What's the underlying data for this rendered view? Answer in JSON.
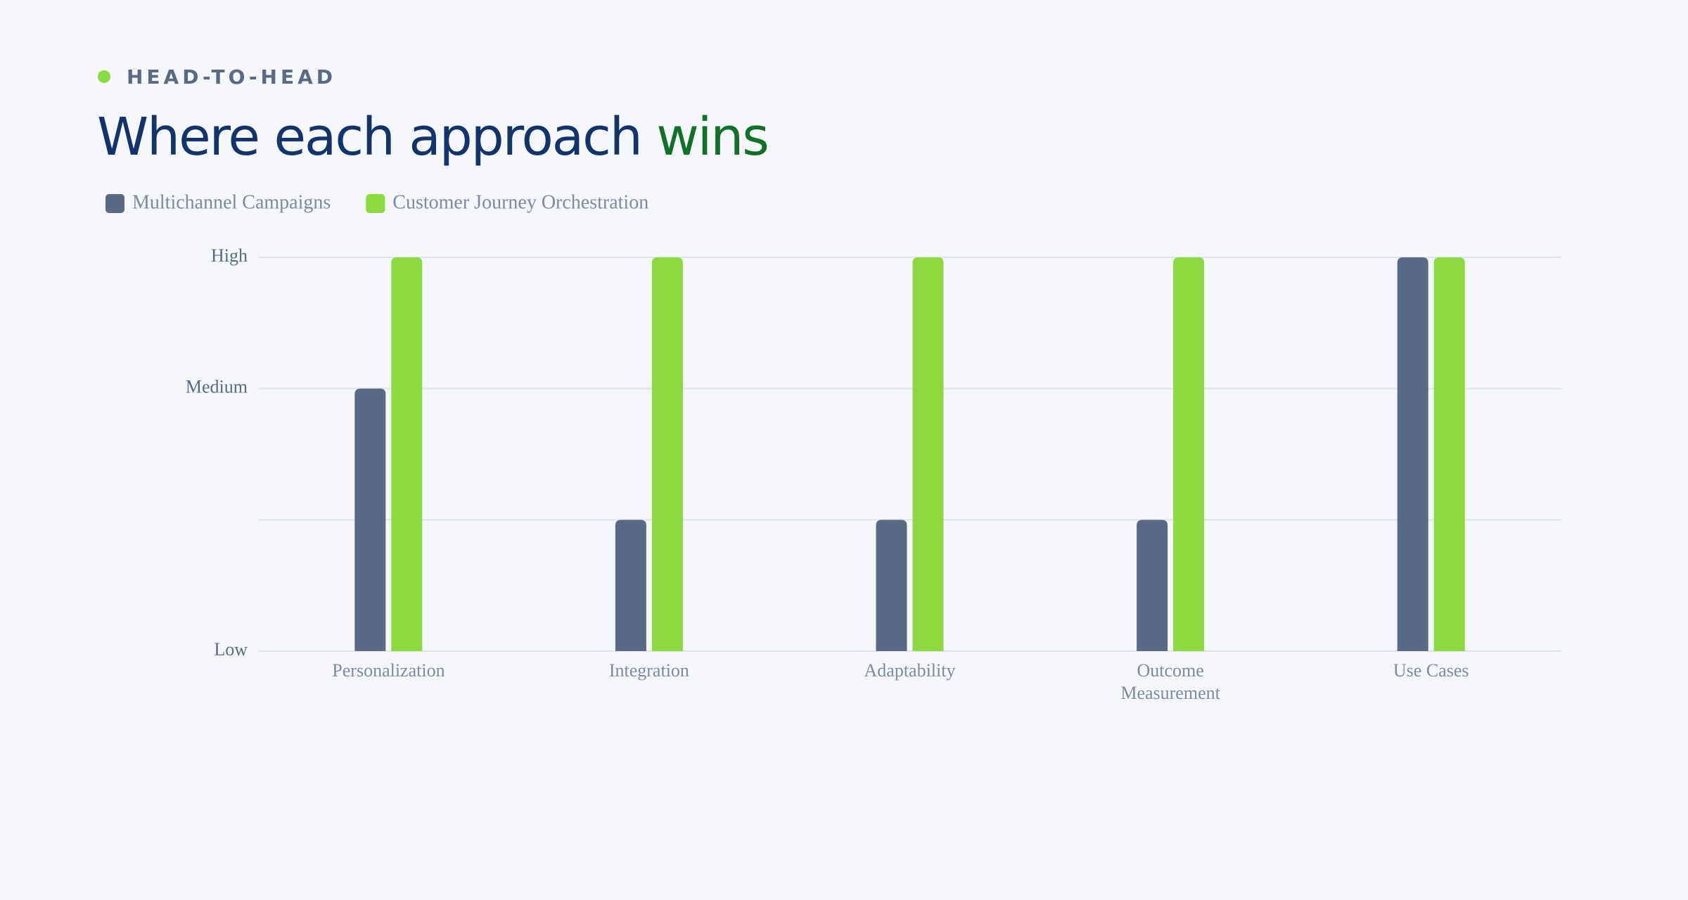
{
  "eyebrow": "HEAD-TO-HEAD",
  "chart_data": {
    "type": "bar",
    "title": "Where each approach",
    "title_highlight": "wins",
    "categories": [
      "Personalization",
      "Integration",
      "Adaptability",
      "Outcome Measurement",
      "Use Cases"
    ],
    "series": [
      {
        "name": "Multichannel Campaigns",
        "color": "#5a6a85",
        "values": [
          2,
          1,
          1,
          1,
          3
        ]
      },
      {
        "name": "Customer Journey Orchestration",
        "color": "#8cd940",
        "values": [
          3,
          3,
          3,
          3,
          3
        ]
      }
    ],
    "ylim": [
      0,
      3
    ],
    "yticks": [
      {
        "value": 0,
        "label": "Low"
      },
      {
        "value": 1,
        "label": null
      },
      {
        "value": 2,
        "label": "Medium"
      },
      {
        "value": 3,
        "label": "High"
      }
    ],
    "grid": true
  }
}
